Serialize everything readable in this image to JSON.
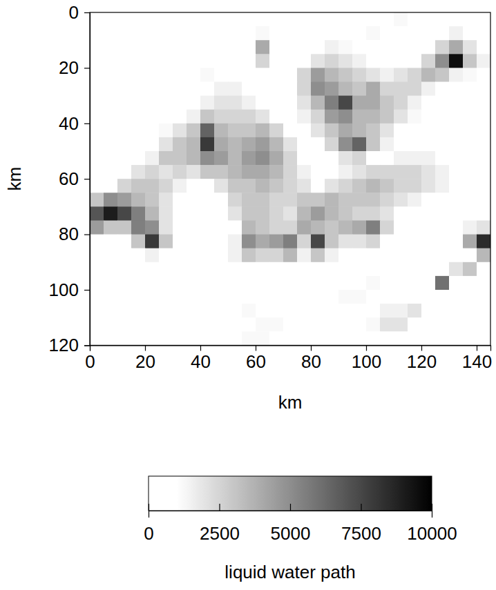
{
  "chart_data": {
    "type": "heatmap",
    "x_label": "km",
    "y_label": "km",
    "xlim": [
      0,
      145
    ],
    "ylim": [
      0,
      120
    ],
    "xticks": [
      0,
      20,
      40,
      60,
      80,
      100,
      120,
      140
    ],
    "yticks": [
      0,
      20,
      40,
      60,
      80,
      100,
      120
    ],
    "x_bins": [
      0,
      5,
      10,
      15,
      20,
      25,
      30,
      35,
      40,
      45,
      50,
      55,
      60,
      65,
      70,
      75,
      80,
      85,
      90,
      95,
      100,
      105,
      110,
      115,
      120,
      125,
      130,
      135,
      140,
      145
    ],
    "y_bins": [
      0,
      5,
      10,
      15,
      20,
      25,
      30,
      35,
      40,
      45,
      50,
      55,
      60,
      65,
      70,
      75,
      80,
      85,
      90,
      95,
      100,
      105,
      110,
      115,
      120
    ],
    "z": [
      [
        0,
        0,
        0,
        0,
        0,
        0,
        0,
        0,
        0,
        0,
        0,
        0,
        0,
        0,
        0,
        0,
        0,
        0,
        0,
        0,
        0,
        0,
        1200,
        0,
        0,
        0,
        0,
        0,
        0
      ],
      [
        0,
        0,
        0,
        0,
        0,
        0,
        0,
        0,
        0,
        0,
        0,
        0,
        1200,
        0,
        0,
        0,
        0,
        0,
        0,
        0,
        1200,
        0,
        0,
        0,
        0,
        0,
        1500,
        0,
        0
      ],
      [
        0,
        0,
        0,
        0,
        0,
        0,
        0,
        0,
        0,
        0,
        0,
        0,
        4000,
        0,
        0,
        0,
        0,
        1500,
        1200,
        0,
        0,
        0,
        0,
        0,
        0,
        2500,
        4000,
        2000,
        0
      ],
      [
        0,
        0,
        0,
        0,
        0,
        0,
        0,
        0,
        0,
        0,
        0,
        0,
        2500,
        0,
        0,
        0,
        2000,
        2500,
        2000,
        1500,
        0,
        0,
        0,
        0,
        2500,
        5000,
        9500,
        3000,
        1500
      ],
      [
        0,
        0,
        0,
        0,
        0,
        0,
        0,
        0,
        1200,
        0,
        0,
        0,
        0,
        0,
        0,
        2500,
        4500,
        3500,
        3000,
        2500,
        2000,
        1500,
        2000,
        2500,
        3500,
        3000,
        1500,
        1200,
        0
      ],
      [
        0,
        0,
        0,
        0,
        0,
        0,
        0,
        0,
        0,
        1500,
        1500,
        0,
        0,
        0,
        0,
        2500,
        5000,
        4500,
        3500,
        3000,
        4000,
        2500,
        2500,
        2500,
        1500,
        0,
        0,
        0,
        0
      ],
      [
        0,
        0,
        0,
        0,
        0,
        0,
        0,
        0,
        1500,
        2000,
        2000,
        1500,
        0,
        0,
        0,
        2000,
        3500,
        5500,
        7500,
        4000,
        4000,
        3000,
        2500,
        1500,
        0,
        0,
        0,
        0,
        0
      ],
      [
        0,
        0,
        0,
        0,
        0,
        0,
        0,
        1500,
        3000,
        2500,
        2500,
        2500,
        2000,
        0,
        0,
        1500,
        2500,
        4500,
        5000,
        3500,
        3500,
        3000,
        2000,
        1200,
        0,
        0,
        0,
        0,
        0
      ],
      [
        0,
        0,
        0,
        0,
        0,
        1200,
        2000,
        3000,
        6500,
        3500,
        3000,
        3000,
        3500,
        2500,
        0,
        0,
        2000,
        3000,
        4000,
        3500,
        3000,
        2000,
        0,
        0,
        0,
        0,
        0,
        0,
        0
      ],
      [
        0,
        0,
        0,
        0,
        0,
        2000,
        3000,
        3500,
        8000,
        4000,
        3500,
        4000,
        4500,
        3500,
        2000,
        0,
        0,
        2500,
        5000,
        6500,
        3000,
        1500,
        0,
        0,
        0,
        0,
        0,
        0,
        0
      ],
      [
        0,
        0,
        0,
        0,
        1500,
        3000,
        3000,
        3500,
        5000,
        4500,
        3500,
        4500,
        5000,
        4000,
        2500,
        0,
        0,
        0,
        2000,
        2500,
        0,
        0,
        1500,
        1500,
        1500,
        0,
        0,
        0,
        0
      ],
      [
        0,
        0,
        0,
        2000,
        2500,
        2000,
        2500,
        2000,
        3000,
        3000,
        3500,
        4000,
        4000,
        3500,
        2500,
        1500,
        0,
        0,
        1500,
        2000,
        2500,
        2500,
        2500,
        2500,
        2000,
        1500,
        0,
        0,
        0
      ],
      [
        0,
        0,
        2500,
        3000,
        3000,
        2500,
        1500,
        0,
        0,
        2000,
        3000,
        3000,
        3500,
        3000,
        2500,
        2000,
        0,
        2000,
        2500,
        3000,
        3500,
        3000,
        2500,
        2500,
        2000,
        1500,
        0,
        0,
        0
      ],
      [
        3000,
        5000,
        4500,
        3500,
        3000,
        2000,
        0,
        0,
        0,
        0,
        2500,
        3000,
        3000,
        2500,
        2500,
        3000,
        3000,
        3500,
        3000,
        3000,
        3000,
        2500,
        2000,
        1500,
        0,
        0,
        0,
        0,
        0
      ],
      [
        7000,
        9000,
        7500,
        5500,
        3500,
        2000,
        0,
        0,
        0,
        0,
        2000,
        3000,
        3000,
        2500,
        2000,
        3500,
        4500,
        3500,
        3000,
        2500,
        2500,
        2000,
        0,
        0,
        0,
        0,
        0,
        0,
        0
      ],
      [
        4500,
        3000,
        3000,
        5500,
        5000,
        2000,
        0,
        0,
        0,
        0,
        0,
        3500,
        3000,
        2500,
        2500,
        4000,
        3500,
        3000,
        3500,
        4000,
        5500,
        2500,
        0,
        0,
        0,
        0,
        0,
        1500,
        2000
      ],
      [
        0,
        0,
        0,
        3000,
        8000,
        3000,
        0,
        0,
        0,
        0,
        1500,
        5000,
        4000,
        4500,
        5500,
        2500,
        7500,
        3000,
        2000,
        2000,
        2500,
        0,
        0,
        0,
        0,
        0,
        0,
        4000,
        8500
      ],
      [
        0,
        0,
        0,
        0,
        1500,
        0,
        0,
        0,
        0,
        0,
        1500,
        3000,
        2500,
        2500,
        3500,
        1500,
        3000,
        1500,
        0,
        0,
        0,
        0,
        0,
        0,
        0,
        0,
        0,
        0,
        3500
      ],
      [
        0,
        0,
        0,
        0,
        0,
        0,
        0,
        0,
        0,
        0,
        0,
        0,
        0,
        0,
        0,
        0,
        0,
        0,
        0,
        0,
        0,
        0,
        0,
        0,
        0,
        0,
        2000,
        3000,
        0
      ],
      [
        0,
        0,
        0,
        0,
        0,
        0,
        0,
        0,
        0,
        0,
        0,
        0,
        0,
        0,
        0,
        0,
        0,
        0,
        0,
        0,
        1200,
        0,
        0,
        0,
        0,
        6000,
        0,
        0,
        0
      ],
      [
        0,
        0,
        0,
        0,
        0,
        0,
        0,
        0,
        0,
        0,
        0,
        0,
        0,
        0,
        0,
        0,
        0,
        0,
        1200,
        1200,
        0,
        0,
        0,
        0,
        0,
        0,
        0,
        0,
        0
      ],
      [
        0,
        0,
        0,
        0,
        0,
        0,
        0,
        0,
        0,
        0,
        0,
        1200,
        0,
        0,
        0,
        0,
        0,
        0,
        0,
        0,
        0,
        1500,
        1500,
        2000,
        0,
        0,
        0,
        0,
        0
      ],
      [
        0,
        0,
        0,
        0,
        0,
        0,
        0,
        0,
        0,
        0,
        0,
        0,
        1200,
        1200,
        0,
        0,
        0,
        0,
        0,
        0,
        1200,
        2000,
        2000,
        0,
        0,
        0,
        0,
        0,
        0
      ],
      [
        0,
        0,
        0,
        0,
        0,
        0,
        0,
        0,
        0,
        0,
        0,
        1200,
        1200,
        0,
        0,
        0,
        0,
        0,
        0,
        0,
        0,
        0,
        0,
        0,
        0,
        0,
        0,
        0,
        0
      ]
    ],
    "colorbar": {
      "range": [
        0,
        10000
      ],
      "ticks": [
        0,
        2500,
        5000,
        7500,
        10000
      ],
      "label": "liquid water path"
    }
  }
}
